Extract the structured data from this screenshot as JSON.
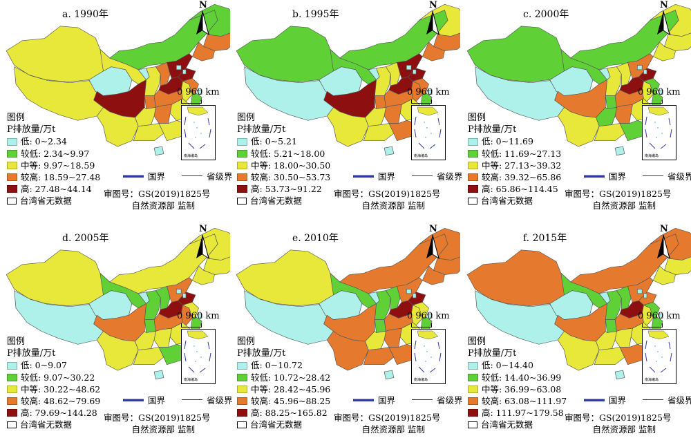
{
  "common": {
    "north_label": "N",
    "scale_label": "0  960 km",
    "legend_title": "图例",
    "legend_unit": "P排放量/万t",
    "national_border": "国界",
    "provincial_border": "省级界",
    "approval_number": "审图号：GS(2019)1825号",
    "supervisor": "自然资源部 监制",
    "taiwan_note": "台湾省无数据",
    "inset_label": "南海诸岛"
  },
  "colors": {
    "low": "#aef1ea",
    "lower": "#5fd136",
    "medium": "#e8e83a",
    "higher": "#e57a2e",
    "high": "#8e0f0f"
  },
  "panels": [
    {
      "title": "a. 1990年",
      "classes": [
        "低: 0~2.34",
        "较低: 2.34~9.97",
        "中等: 9.97~18.59",
        "较高: 18.59~27.48",
        "高: 27.48~44.14"
      ]
    },
    {
      "title": "b. 1995年",
      "classes": [
        "低: 0~5.21",
        "较低: 5.21~18.00",
        "中等: 18.00~30.50",
        "较高: 30.50~53.73",
        "高: 53.73~91.22"
      ]
    },
    {
      "title": "c. 2000年",
      "classes": [
        "低: 0~11.69",
        "较低: 11.69~27.13",
        "中等: 27.13~39.32",
        "较高: 39.32~65.86",
        "高: 65.86~114.45"
      ]
    },
    {
      "title": "d. 2005年",
      "classes": [
        "低: 0~9.07",
        "较低: 9.07~30.22",
        "中等: 30.22~48.62",
        "较高: 48.62~79.69",
        "高: 79.69~144.28"
      ]
    },
    {
      "title": "e. 2010年",
      "classes": [
        "低: 0~10.72",
        "较低: 10.72~28.42",
        "中等: 28.42~45.96",
        "较高: 45.96~88.25",
        "高: 88.25~165.82"
      ]
    },
    {
      "title": "f. 2015年",
      "classes": [
        "低: 0~14.40",
        "较低: 14.40~36.99",
        "中等: 36.99~63.08",
        "较高: 63.08~111.97",
        "高: 111.97~179.58"
      ]
    }
  ]
}
